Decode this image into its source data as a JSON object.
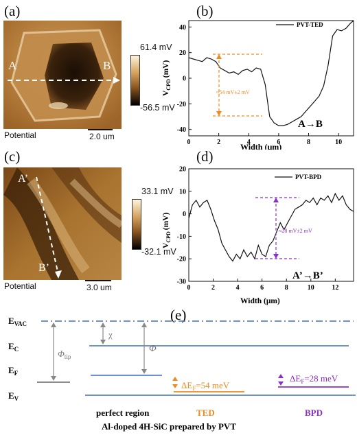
{
  "panels": {
    "a": {
      "letter": "(a)",
      "point_start": "A",
      "point_end": "B",
      "cbar_max": "61.4 mV",
      "cbar_min": "-56.5 mV",
      "caption": "Potential",
      "scalebar": "2.0 um"
    },
    "b": {
      "letter": "(b)",
      "legend": "PVT-TED",
      "direction": "A→B",
      "annotation": "≈54 mV±2 mV",
      "xlabel": "Width (μm)",
      "ylabel_main": "V",
      "ylabel_sub": "CPD",
      "ylabel_unit": "(mV)"
    },
    "c": {
      "letter": "(c)",
      "point_start": "A’",
      "point_end": "B’",
      "cbar_max": "33.1 mV",
      "cbar_min": "-32.1 mV",
      "caption": "Potential",
      "scalebar": "3.0 um"
    },
    "d": {
      "letter": "(d)",
      "legend": "PVT-BPD",
      "direction": "A’→B’",
      "annotation": "≈28 mV±2 mV",
      "xlabel": "Width (μm)",
      "ylabel_main": "V",
      "ylabel_sub": "CPD",
      "ylabel_unit": "(mV)"
    },
    "e": {
      "letter": "(e)",
      "evac": "E",
      "evac_sub": "VAC",
      "ec": "E",
      "ec_sub": "C",
      "ef": "E",
      "ef_sub": "F",
      "ev": "E",
      "ev_sub": "V",
      "chi": "χ",
      "phi": "Φ",
      "phi_tip": "Φ",
      "phi_tip_sub": "tip",
      "ted_shift": "ΔE",
      "ted_shift_sub": "F",
      "ted_shift_val": "=54 meV",
      "bpd_shift": "ΔE",
      "bpd_shift_sub": "F",
      "bpd_shift_val": "=28 meV",
      "label_perfect": "perfect region",
      "label_ted": "TED",
      "label_bpd": "BPD",
      "caption": "Al-doped 4H-SiC prepared by PVT"
    }
  },
  "colors": {
    "orange": "#f08a1e",
    "purple": "#8a2fc9",
    "blue_line": "#3f6fc0",
    "dashdot": "#3f6fc0"
  },
  "chart_data": [
    {
      "type": "line",
      "name": "panel-b",
      "series": [
        {
          "name": "PVT-TED",
          "x": [
            0,
            0.3,
            0.6,
            0.9,
            1.2,
            1.5,
            1.8,
            2.1,
            2.4,
            2.7,
            3.0,
            3.3,
            3.6,
            3.9,
            4.2,
            4.5,
            4.8,
            5.1,
            5.4,
            5.7,
            6.0,
            6.3,
            6.6,
            6.9,
            7.2,
            7.5,
            7.8,
            8.1,
            8.4,
            8.7,
            9.0,
            9.3,
            9.6,
            9.9,
            10.2,
            10.5,
            10.8,
            11.0
          ],
          "y": [
            16,
            15,
            14,
            13,
            16,
            15,
            13,
            8,
            6,
            4,
            5,
            3,
            6,
            7,
            5,
            8,
            7,
            -5,
            -30,
            -35,
            -37,
            -37,
            -36,
            -34,
            -32,
            -30,
            -26,
            -22,
            -18,
            -14,
            -6,
            10,
            33,
            38,
            37,
            39,
            43,
            45
          ]
        }
      ],
      "xlim": [
        0,
        11
      ],
      "ylim": [
        -45,
        45
      ],
      "xticks": [
        0,
        2,
        4,
        6,
        8,
        10
      ],
      "yticks": [
        -40,
        -20,
        0,
        20,
        40
      ]
    },
    {
      "type": "line",
      "name": "panel-d",
      "series": [
        {
          "name": "PVT-BPD",
          "x": [
            0,
            0.3,
            0.6,
            0.9,
            1.2,
            1.5,
            1.8,
            2.1,
            2.4,
            2.7,
            3.0,
            3.3,
            3.6,
            3.9,
            4.2,
            4.5,
            4.8,
            5.1,
            5.4,
            5.7,
            6.0,
            6.3,
            6.6,
            6.9,
            7.2,
            7.5,
            7.8,
            8.1,
            8.4,
            8.7,
            9.0,
            9.3,
            9.6,
            9.9,
            10.2,
            10.5,
            10.8,
            11.1,
            11.4,
            11.7,
            12.0,
            12.3,
            12.6,
            12.9,
            13.2,
            13.5
          ],
          "y": [
            -2,
            4,
            6,
            3,
            5,
            6,
            2,
            -3,
            -7,
            -13,
            -16,
            -19,
            -21,
            -18,
            -20,
            -16,
            -19,
            -17,
            -20,
            -14,
            -18,
            -19,
            -14,
            -12,
            -8,
            -4,
            -7,
            -4,
            -1,
            2,
            3,
            4,
            6,
            5,
            7,
            4,
            7,
            6,
            8,
            5,
            9,
            6,
            8,
            4,
            2,
            1
          ]
        }
      ],
      "xlim": [
        0,
        13.5
      ],
      "ylim": [
        -30,
        20
      ],
      "xticks": [
        0,
        2,
        4,
        6,
        8,
        10,
        12
      ],
      "yticks": [
        -30,
        -20,
        -10,
        0,
        10,
        20
      ]
    }
  ]
}
